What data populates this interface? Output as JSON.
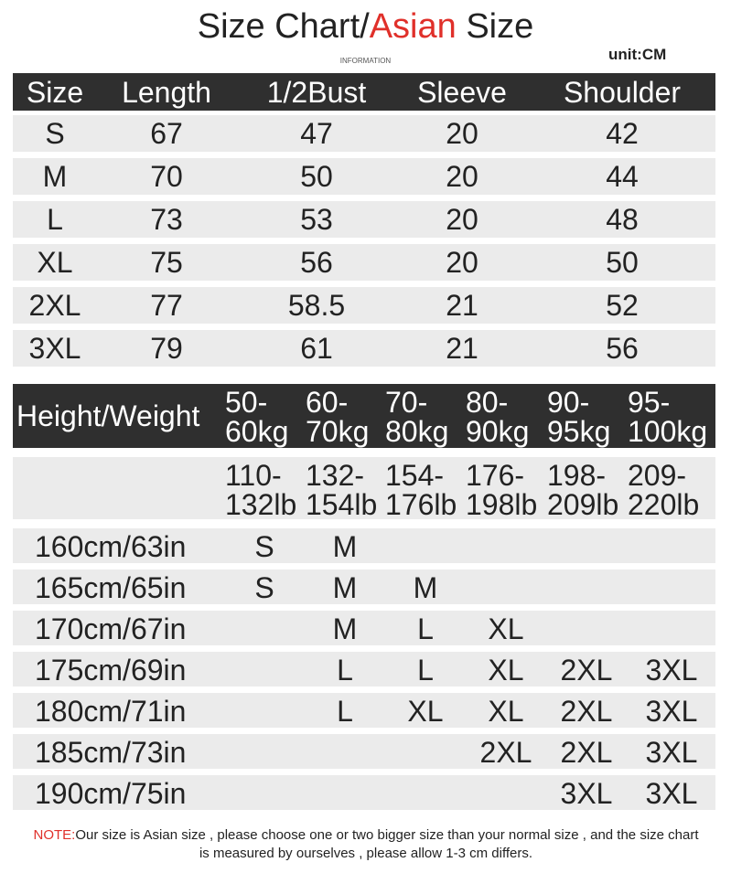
{
  "title": {
    "prefix": "Size Chart/",
    "highlight": "Asian",
    "suffix": " Size"
  },
  "subtitle": "INFORMATION",
  "unit": "unit:CM",
  "size_table": {
    "headers": [
      "Size",
      "Length",
      "1/2Bust",
      "Sleeve",
      "Shoulder"
    ],
    "rows": [
      [
        "S",
        "67",
        "47",
        "20",
        "42"
      ],
      [
        "M",
        "70",
        "50",
        "20",
        "44"
      ],
      [
        "L",
        "73",
        "53",
        "20",
        "48"
      ],
      [
        "XL",
        "75",
        "56",
        "20",
        "50"
      ],
      [
        "2XL",
        "77",
        "58.5",
        "21",
        "52"
      ],
      [
        "3XL",
        "79",
        "61",
        "21",
        "56"
      ]
    ]
  },
  "fit_table": {
    "header_label": "Height/Weight",
    "weights_kg": [
      "50-60kg",
      "60-70kg",
      "70-80kg",
      "80-90kg",
      "90-95kg",
      "95-100kg"
    ],
    "weights_lb": [
      "110-132lb",
      "132-154lb",
      "154-176lb",
      "176-198lb",
      "198-209lb",
      "209-220lb"
    ],
    "rows": [
      {
        "height": "160cm/63in",
        "sizes": [
          "S",
          "M",
          null,
          null,
          null,
          null
        ]
      },
      {
        "height": "165cm/65in",
        "sizes": [
          "S",
          "M",
          "M",
          null,
          null,
          null
        ]
      },
      {
        "height": "170cm/67in",
        "sizes": [
          null,
          "M",
          "L",
          "XL",
          null,
          null
        ]
      },
      {
        "height": "175cm/69in",
        "sizes": [
          null,
          "L",
          "L",
          "XL",
          "2XL",
          "3XL"
        ]
      },
      {
        "height": "180cm/71in",
        "sizes": [
          null,
          "L",
          "XL",
          "XL",
          "2XL",
          "3XL"
        ]
      },
      {
        "height": "185cm/73in",
        "sizes": [
          null,
          null,
          null,
          "2XL",
          "2XL",
          "3XL"
        ]
      },
      {
        "height": "190cm/75in",
        "sizes": [
          null,
          null,
          null,
          null,
          "3XL",
          "3XL"
        ]
      }
    ]
  },
  "note": {
    "label": "NOTE:",
    "text": "Our size is Asian size , please choose one or two bigger size than your normal size , and the size chart is measured by ourselves , please allow 1-3 cm differs."
  }
}
